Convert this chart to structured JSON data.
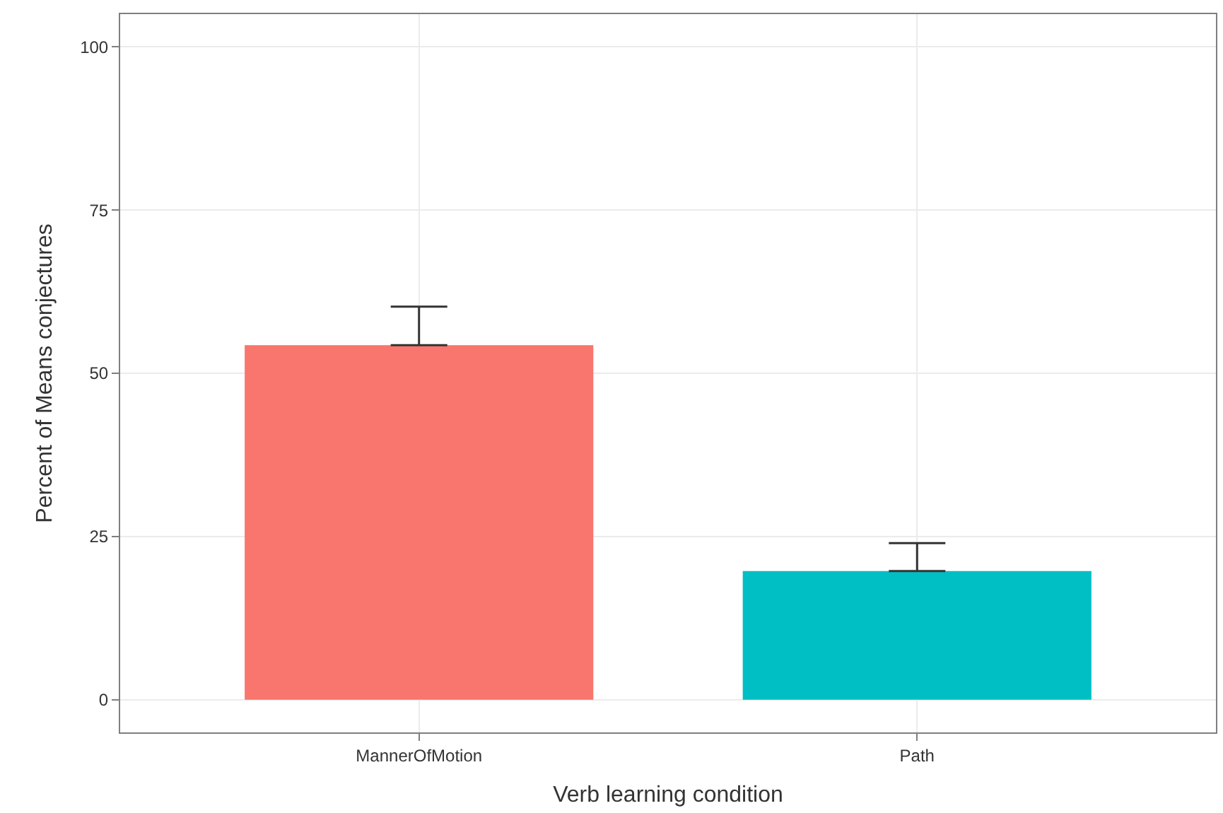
{
  "chart_data": {
    "type": "bar",
    "xlabel": "Verb learning condition",
    "ylabel": "Percent of Means conjectures",
    "categories": [
      "MannerOfMotion",
      "Path"
    ],
    "values": [
      54.3,
      19.7
    ],
    "colors": [
      "#f8766d",
      "#00bfc4"
    ],
    "errors": [
      [
        54.3,
        60.2
      ],
      [
        19.7,
        24.0
      ]
    ],
    "ylim": [
      -5,
      105
    ],
    "yticks": [
      0,
      25,
      50,
      75,
      100
    ],
    "grid": true,
    "legend": false
  }
}
